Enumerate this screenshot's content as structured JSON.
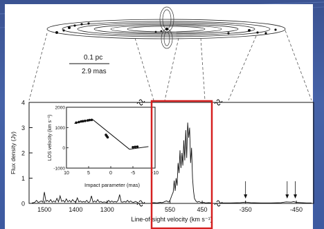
{
  "scale_bar": {
    "length_pc": "0.1 pc",
    "length_mas": "2.9 mas"
  },
  "chart_data": [
    {
      "type": "line",
      "ylabel": "Flux density (Jy)",
      "xlabel": "Line-of-sight velocity (km s⁻¹)",
      "ylim": [
        0,
        4
      ],
      "yticks": [
        "0",
        "1",
        "2",
        "3",
        "4"
      ],
      "panels": [
        {
          "id": "redshifted",
          "xlim": [
            1540,
            1200
          ],
          "xticks": [
            "1500",
            "1400",
            "1300"
          ],
          "x": [
            1540,
            1535,
            1530,
            1525,
            1520,
            1515,
            1510,
            1505,
            1500,
            1495,
            1490,
            1485,
            1480,
            1475,
            1470,
            1465,
            1460,
            1455,
            1450,
            1445,
            1440,
            1435,
            1430,
            1425,
            1420,
            1415,
            1410,
            1405,
            1400,
            1395,
            1390,
            1385,
            1380,
            1375,
            1370,
            1365,
            1360,
            1355,
            1350,
            1345,
            1340,
            1335,
            1330,
            1325,
            1320,
            1315,
            1310,
            1305,
            1300,
            1295,
            1290,
            1285,
            1280,
            1275,
            1270,
            1265,
            1260,
            1255,
            1250,
            1245,
            1240,
            1235,
            1230,
            1225,
            1220,
            1215,
            1210,
            1205,
            1200
          ],
          "y": [
            0.02,
            0.03,
            0.05,
            0.12,
            0.04,
            0.06,
            0.1,
            0.05,
            0.45,
            0.08,
            0.12,
            0.06,
            0.15,
            0.05,
            0.1,
            0.05,
            0.2,
            0.06,
            0.3,
            0.08,
            0.12,
            0.05,
            0.18,
            0.06,
            0.12,
            0.05,
            0.15,
            0.08,
            0.05,
            0.22,
            0.06,
            0.1,
            0.05,
            0.08,
            0.05,
            0.12,
            0.04,
            0.06,
            0.3,
            0.05,
            0.1,
            0.05,
            0.15,
            0.05,
            0.08,
            0.04,
            0.06,
            0.05,
            0.04,
            0.12,
            0.05,
            0.1,
            0.05,
            0.08,
            0.05,
            0.12,
            0.35,
            0.06,
            0.05,
            0.08,
            0.05,
            0.12,
            0.05,
            0.1,
            0.05,
            0.04,
            0.08,
            0.05,
            0.03
          ]
        },
        {
          "id": "systemic",
          "xlim": [
            620,
            420
          ],
          "xticks": [
            "550",
            "450"
          ],
          "x": [
            610,
            600,
            590,
            580,
            575,
            570,
            565,
            560,
            555,
            550,
            545,
            540,
            537,
            534,
            531,
            528,
            525,
            522,
            519,
            516,
            513,
            510,
            507,
            504,
            501,
            498,
            495,
            492,
            489,
            486,
            483,
            480,
            477,
            474,
            470,
            465,
            460,
            455,
            450,
            445,
            440,
            430,
            420
          ],
          "y": [
            0.02,
            0.03,
            0.02,
            0.04,
            0.03,
            0.05,
            0.08,
            0.1,
            0.05,
            0.12,
            0.3,
            0.45,
            0.9,
            0.5,
            1.0,
            0.7,
            1.6,
            1.2,
            2.1,
            1.4,
            2.0,
            1.5,
            2.5,
            1.7,
            2.9,
            1.8,
            3.2,
            2.6,
            3.0,
            1.6,
            2.2,
            1.0,
            0.5,
            0.2,
            0.1,
            0.05,
            0.08,
            0.04,
            0.03,
            0.04,
            0.02,
            0.03,
            0.02
          ]
        },
        {
          "id": "blueshifted",
          "xlim": [
            -300,
            -480
          ],
          "xticks": [
            "-350",
            "-450"
          ],
          "x": [
            -300,
            -320,
            -340,
            -350,
            -360,
            -380,
            -400,
            -420,
            -430,
            -440,
            -445,
            -450,
            -460,
            -470,
            -480
          ],
          "y": [
            0.02,
            0.02,
            0.03,
            0.05,
            0.03,
            0.02,
            0.02,
            0.03,
            0.06,
            0.05,
            0.07,
            0.04,
            0.03,
            0.02,
            0.02
          ],
          "arrows_x": [
            -350,
            -432,
            -448
          ]
        }
      ]
    },
    {
      "type": "scatter",
      "ylabel": "LOS velocity (km s⁻¹)",
      "xlabel": "Impact parameter (mas)",
      "xlim": [
        10,
        -10
      ],
      "ylim": [
        -1000,
        2000
      ],
      "xticks": [
        "10",
        "5",
        "0",
        "-5",
        "-10"
      ],
      "yticks": [
        "-1000",
        "0",
        "1000",
        "2000"
      ],
      "curve": {
        "x": [
          8.2,
          5.5,
          4.0,
          -4.2,
          -8.5
        ],
        "y": [
          1200,
          1330,
          1380,
          -70,
          60
        ]
      },
      "points": {
        "x": [
          7.8,
          7.2,
          6.7,
          6.3,
          5.8,
          5.2,
          4.8,
          4.3,
          1.1,
          0.9,
          0.7,
          -5.0,
          -5.5,
          -6.0
        ],
        "y": [
          1240,
          1270,
          1300,
          1310,
          1330,
          1350,
          1365,
          1375,
          640,
          580,
          520,
          30,
          45,
          55
        ]
      }
    }
  ]
}
